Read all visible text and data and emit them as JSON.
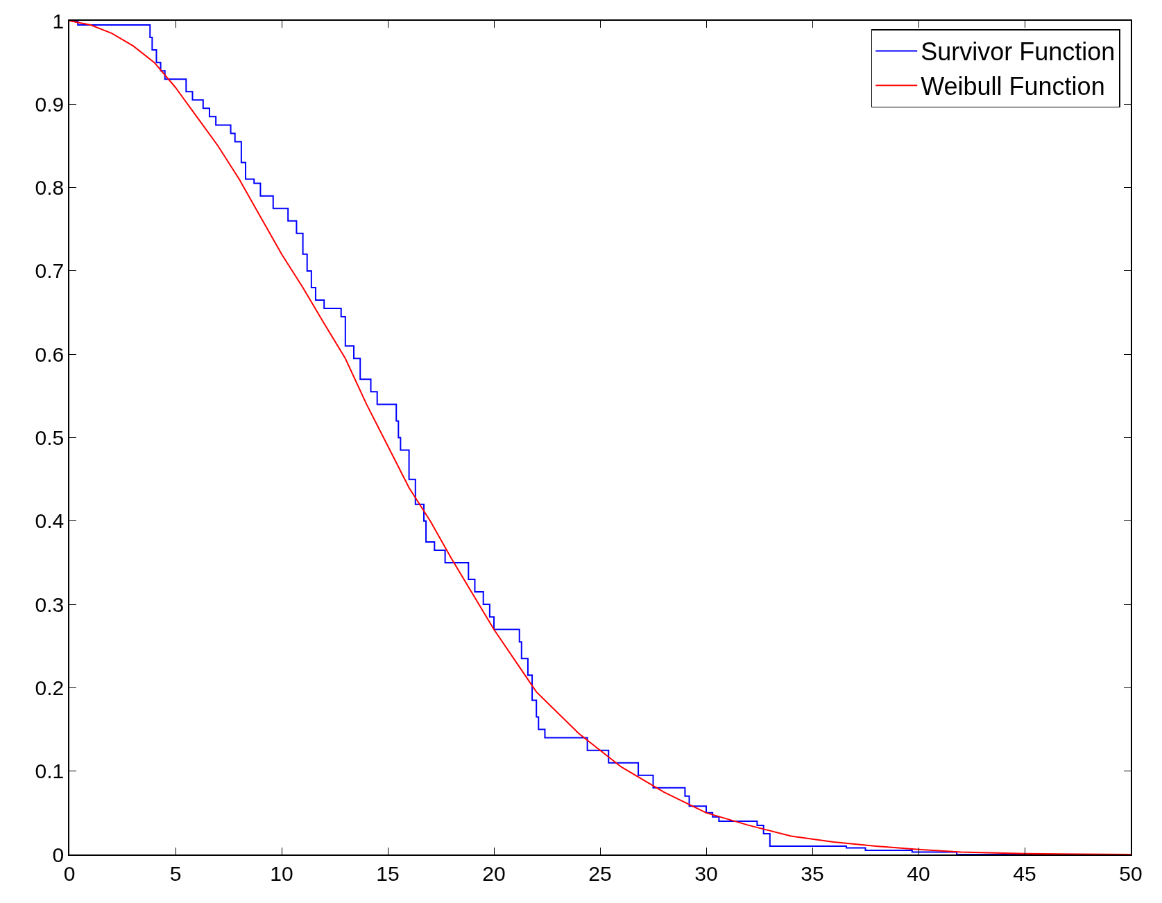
{
  "chart_data": {
    "type": "line",
    "xlim": [
      0,
      50
    ],
    "ylim": [
      0,
      1
    ],
    "xticks": [
      0,
      5,
      10,
      15,
      20,
      25,
      30,
      35,
      40,
      45,
      50
    ],
    "yticks": [
      0,
      0.1,
      0.2,
      0.3,
      0.4,
      0.5,
      0.6,
      0.7,
      0.8,
      0.9,
      1
    ],
    "legend": "top right",
    "series": [
      {
        "name": "Survivor Function",
        "type": "step",
        "color": "#0000ff",
        "x": [
          0,
          0.4,
          3.8,
          3.9,
          4.1,
          4.3,
          4.5,
          5.5,
          5.8,
          6.3,
          6.6,
          6.9,
          7.6,
          7.8,
          8.1,
          8.3,
          8.7,
          9.0,
          9.6,
          10.3,
          10.7,
          11.0,
          11.2,
          11.4,
          11.6,
          12.0,
          12.8,
          13.0,
          13.4,
          13.7,
          14.2,
          14.5,
          15.4,
          15.5,
          15.6,
          16.0,
          16.3,
          16.7,
          16.8,
          17.2,
          17.7,
          18.8,
          19.1,
          19.5,
          19.8,
          20.0,
          21.2,
          21.3,
          21.6,
          21.8,
          22.0,
          22.1,
          22.4,
          24.4,
          25.4,
          26.8,
          27.5,
          29.0,
          29.2,
          30.0,
          30.3,
          30.6,
          32.4,
          32.7,
          33.0,
          36.6,
          37.5,
          39.7,
          41.8,
          50
        ],
        "values": [
          1,
          0.995,
          0.98,
          0.965,
          0.95,
          0.94,
          0.93,
          0.915,
          0.905,
          0.895,
          0.885,
          0.875,
          0.865,
          0.855,
          0.83,
          0.81,
          0.805,
          0.79,
          0.775,
          0.76,
          0.745,
          0.72,
          0.7,
          0.68,
          0.665,
          0.655,
          0.645,
          0.61,
          0.595,
          0.57,
          0.555,
          0.54,
          0.52,
          0.5,
          0.485,
          0.45,
          0.42,
          0.4,
          0.375,
          0.365,
          0.35,
          0.33,
          0.315,
          0.3,
          0.285,
          0.27,
          0.255,
          0.235,
          0.215,
          0.185,
          0.165,
          0.15,
          0.14,
          0.125,
          0.11,
          0.095,
          0.08,
          0.07,
          0.058,
          0.05,
          0.045,
          0.04,
          0.035,
          0.025,
          0.01,
          0.008,
          0.005,
          0.003,
          0,
          0
        ]
      },
      {
        "name": "Weibull Function",
        "color": "#ff0000",
        "x": [
          0,
          1,
          2,
          3,
          4,
          5,
          6,
          7,
          8,
          9,
          10,
          11,
          12,
          13,
          14,
          15,
          16,
          17,
          18,
          20,
          22,
          24,
          26,
          28,
          30,
          32,
          34,
          36,
          38,
          40,
          42,
          45,
          50
        ],
        "values": [
          1,
          0.995,
          0.985,
          0.97,
          0.95,
          0.92,
          0.885,
          0.85,
          0.81,
          0.765,
          0.72,
          0.68,
          0.637,
          0.595,
          0.54,
          0.49,
          0.44,
          0.4,
          0.355,
          0.27,
          0.195,
          0.145,
          0.105,
          0.075,
          0.05,
          0.035,
          0.022,
          0.015,
          0.01,
          0.006,
          0.003,
          0.001,
          0
        ]
      }
    ]
  }
}
